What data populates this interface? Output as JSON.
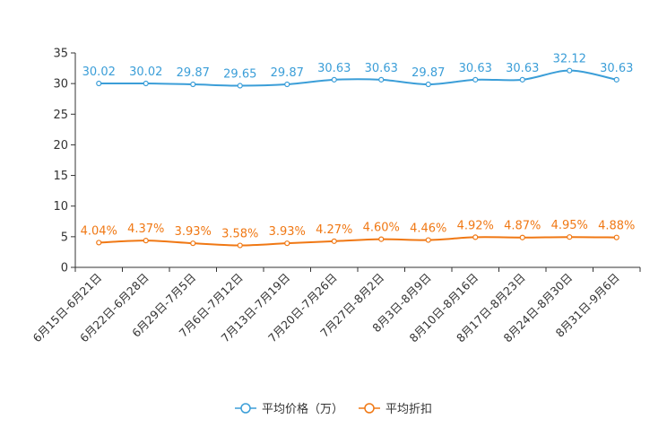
{
  "chart_data": {
    "type": "line",
    "title": "",
    "xlabel": "",
    "ylabel": "",
    "ylim": [
      0,
      35
    ],
    "yticks": [
      0,
      5,
      10,
      15,
      20,
      25,
      30,
      35
    ],
    "grid": false,
    "legend_position": "bottom-center",
    "categories": [
      "6月15日-6月21日",
      "6月22日-6月28日",
      "6月29日-7月5日",
      "7月6日-7月12日",
      "7月13日-7月19日",
      "7月20日-7月26日",
      "7月27日-8月2日",
      "8月3日-8月9日",
      "8月10日-8月16日",
      "8月17日-8月23日",
      "8月24日-8月30日",
      "8月31日-9月6日"
    ],
    "series": [
      {
        "name": "平均价格（万）",
        "color": "#3b9ed8",
        "values": [
          30.02,
          30.02,
          29.87,
          29.65,
          29.87,
          30.63,
          30.63,
          29.87,
          30.63,
          30.63,
          32.12,
          30.63
        ],
        "labels": [
          "30.02",
          "30.02",
          "29.87",
          "29.65",
          "29.87",
          "30.63",
          "30.63",
          "29.87",
          "30.63",
          "30.63",
          "32.12",
          "30.63"
        ]
      },
      {
        "name": "平均折扣",
        "color": "#f07814",
        "values": [
          4.04,
          4.37,
          3.93,
          3.58,
          3.93,
          4.27,
          4.6,
          4.46,
          4.92,
          4.87,
          4.95,
          4.88
        ],
        "labels": [
          "4.04%",
          "4.37%",
          "3.93%",
          "3.58%",
          "3.93%",
          "4.27%",
          "4.60%",
          "4.46%",
          "4.92%",
          "4.87%",
          "4.95%",
          "4.88%"
        ]
      }
    ]
  }
}
